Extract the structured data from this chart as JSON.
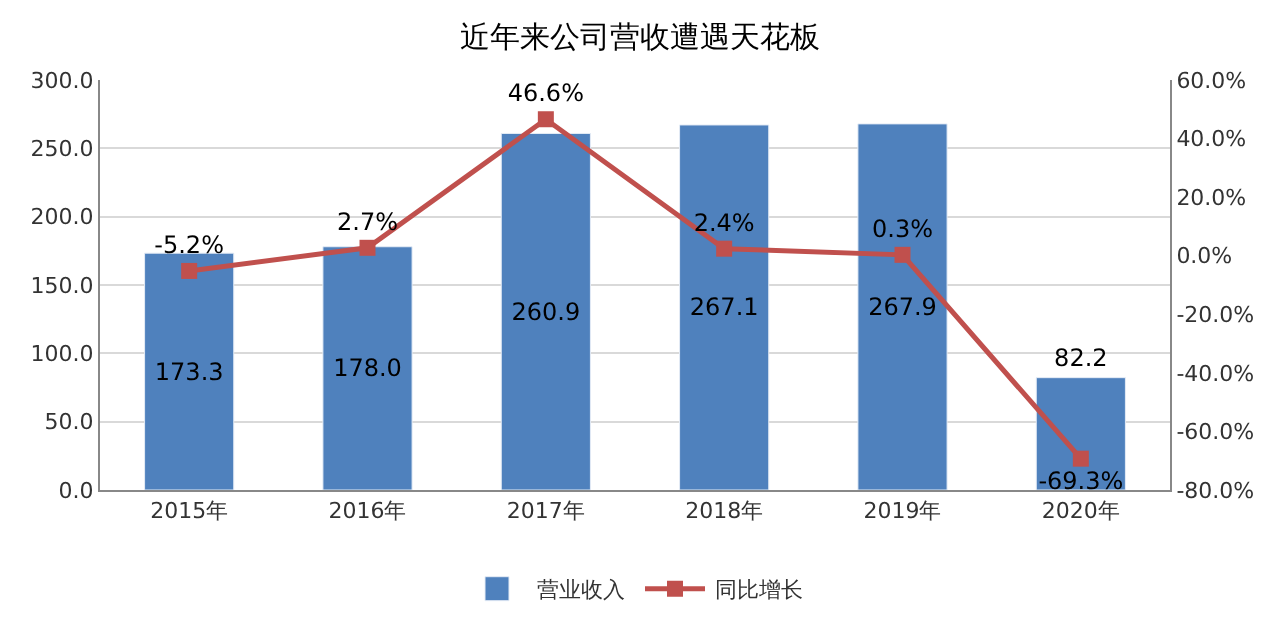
{
  "chart_data": {
    "type": "bar",
    "title": "近年来公司营收遭遇天花板",
    "categories": [
      "2015年",
      "2016年",
      "2017年",
      "2018年",
      "2019年",
      "2020年"
    ],
    "series": [
      {
        "name": "营业收入",
        "color": "#4f81bd",
        "values": [
          173.3,
          178.0,
          260.9,
          267.1,
          267.9,
          82.2
        ],
        "value_labels": [
          "173.3",
          "178.0",
          "260.9",
          "267.1",
          "267.9",
          "82.2"
        ]
      },
      {
        "name": "同比增长",
        "type": "line",
        "axis": "y2",
        "color": "#c0504d",
        "marker": "square",
        "values": [
          -5.2,
          2.7,
          46.6,
          2.4,
          0.3,
          -69.3
        ],
        "value_labels": [
          "-5.2%",
          "2.7%",
          "46.6%",
          "2.4%",
          "0.3%",
          "-69.3%"
        ]
      }
    ],
    "ylim": [
      0,
      300
    ],
    "yticks": [
      {
        "value": 0,
        "label": "0.0"
      },
      {
        "value": 50,
        "label": "50.0"
      },
      {
        "value": 100,
        "label": "100.0"
      },
      {
        "value": 150,
        "label": "150.0"
      },
      {
        "value": 200,
        "label": "200.0"
      },
      {
        "value": 250,
        "label": "250.0"
      },
      {
        "value": 300,
        "label": "300.0"
      }
    ],
    "y2lim": [
      -80,
      60
    ],
    "y2ticks": [
      {
        "value": -80,
        "label": "-80.0%"
      },
      {
        "value": -60,
        "label": "-60.0%"
      },
      {
        "value": -40,
        "label": "-40.0%"
      },
      {
        "value": -20,
        "label": "-20.0%"
      },
      {
        "value": 0,
        "label": "0.0%"
      },
      {
        "value": 20,
        "label": "20.0%"
      },
      {
        "value": 40,
        "label": "40.0%"
      },
      {
        "value": 60,
        "label": "60.0%"
      }
    ],
    "grid": "y",
    "legend": "bottom"
  }
}
